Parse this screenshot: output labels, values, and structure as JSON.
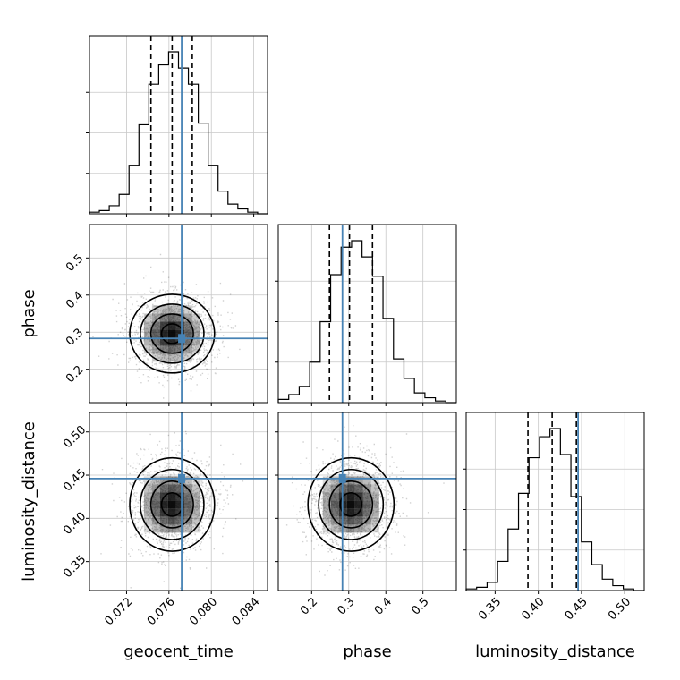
{
  "chart_data": {
    "type": "corner",
    "colors": {
      "truth": "#4682b4",
      "line": "#000000",
      "grid": "#c8c8c8",
      "density": "#000000"
    },
    "grid": true,
    "parameters": [
      {
        "name": "geocent_time",
        "label": "geocent_time",
        "range": [
          0.0685,
          0.0853
        ],
        "ticks": [
          0.072,
          0.076,
          0.08,
          0.084
        ],
        "tick_labels": [
          "0.072",
          "0.076",
          "0.080",
          "0.084"
        ],
        "truth": 0.0772,
        "quantiles": [
          0.0743,
          0.0763,
          0.0782
        ],
        "hist_counts": [
          1,
          2,
          5,
          12,
          30,
          55,
          80,
          92,
          100,
          90,
          80,
          56,
          30,
          14,
          6,
          3,
          1,
          0
        ]
      },
      {
        "name": "phase",
        "label": "phase",
        "range": [
          0.11,
          0.59
        ],
        "ticks": [
          0.2,
          0.3,
          0.4,
          0.5
        ],
        "tick_labels": [
          "0.2",
          "0.3",
          "0.4",
          "0.5"
        ],
        "truth": 0.283,
        "quantiles": [
          0.248,
          0.302,
          0.364
        ],
        "hist_counts": [
          2,
          5,
          10,
          25,
          50,
          79,
          96,
          100,
          90,
          78,
          52,
          27,
          15,
          6,
          3,
          1,
          0
        ]
      },
      {
        "name": "luminosity_distance",
        "label": "luminosity_distance",
        "range": [
          0.3165,
          0.5225
        ],
        "ticks": [
          0.35,
          0.4,
          0.45,
          0.5
        ],
        "tick_labels": [
          "0.35",
          "0.40",
          "0.45",
          "0.50"
        ],
        "truth": 0.446,
        "quantiles": [
          0.388,
          0.416,
          0.444
        ],
        "hist_counts": [
          1,
          2,
          5,
          18,
          38,
          60,
          82,
          95,
          100,
          84,
          58,
          30,
          16,
          7,
          3,
          1,
          0
        ]
      }
    ],
    "pairs": [
      {
        "x": "geocent_time",
        "y": "phase",
        "center": [
          0.0763,
          0.296
        ],
        "sigma": [
          0.002,
          0.053
        ]
      },
      {
        "x": "geocent_time",
        "y": "luminosity_distance",
        "center": [
          0.0763,
          0.416
        ],
        "sigma": [
          0.002,
          0.027
        ]
      },
      {
        "x": "phase",
        "y": "luminosity_distance",
        "center": [
          0.306,
          0.416
        ],
        "sigma": [
          0.058,
          0.027
        ]
      }
    ]
  }
}
